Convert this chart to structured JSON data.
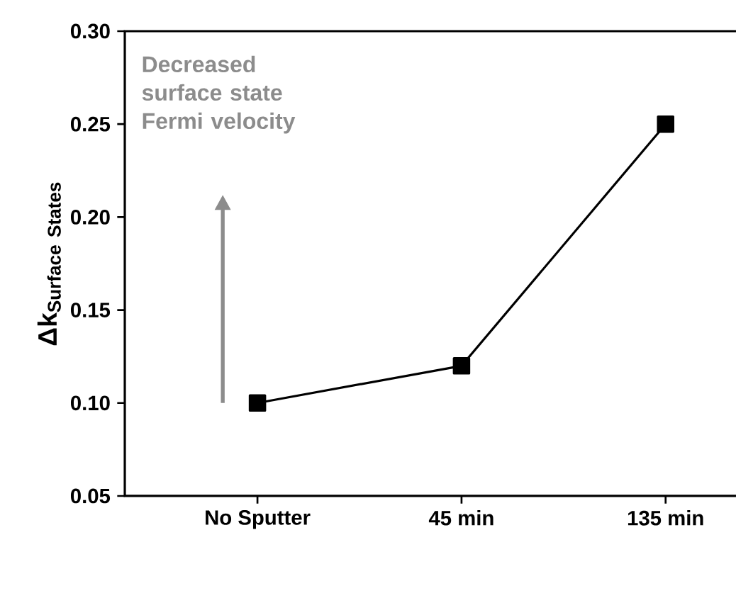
{
  "chart_data": {
    "type": "line",
    "ylabel": "\\mathbf{Δk}_{\\mathbf{Surface\\ States}}",
    "categories": [
      "No Sputter",
      "45 min",
      "135 min"
    ],
    "series": [
      {
        "color": "#000000",
        "values": [
          0.1,
          0.12,
          0.25
        ]
      }
    ],
    "ylim": [
      0.05,
      0.3
    ],
    "yticks": [
      0.05,
      {
        "value": 0.1,
        "label": "0.10"
      },
      0.15,
      {
        "value": 0.2,
        "label": "0.20"
      },
      0.25,
      {
        "value": 0.3,
        "label": "0.30"
      }
    ],
    "marker": "square",
    "line_style": "solid",
    "grid": false,
    "legend": false,
    "annotations": [
      "Decreased\nsurface state\nFermi velocity"
    ]
  }
}
